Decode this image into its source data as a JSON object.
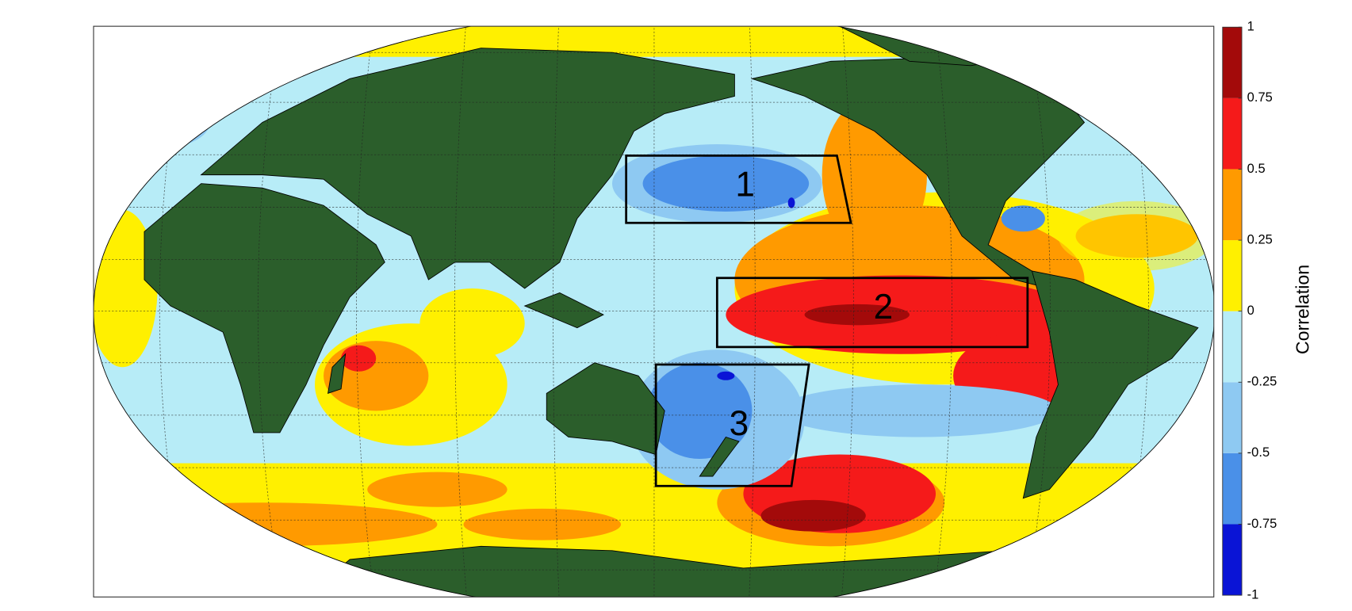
{
  "map": {
    "regions": [
      {
        "label": "1"
      },
      {
        "label": "2"
      },
      {
        "label": "3"
      }
    ],
    "colorbar": {
      "label": "Correlation",
      "lim": [
        -1,
        1
      ],
      "ticks": [
        -1,
        -0.75,
        -0.5,
        -0.25,
        0,
        0.25,
        0.5,
        0.75,
        1
      ],
      "colors": [
        "#0a14d6",
        "#4a90e8",
        "#8ec9f2",
        "#b7ecf7",
        "#fff000",
        "#ff9a00",
        "#f51a1a",
        "#a30a0a"
      ]
    }
  }
}
